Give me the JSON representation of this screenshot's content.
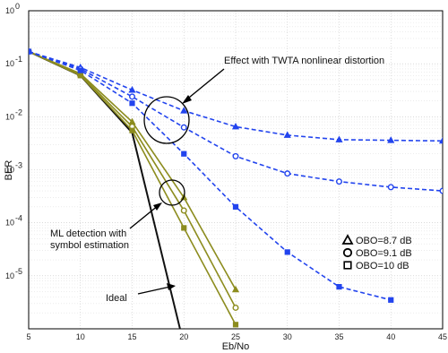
{
  "chart_data": {
    "type": "line",
    "xlabel": "Eb/No",
    "ylabel": "BER",
    "xlim": [
      5,
      45
    ],
    "ylim_log10": [
      -6,
      0
    ],
    "log_y": true,
    "grid": true,
    "x_ticks": [
      "5",
      "10",
      "15",
      "20",
      "25",
      "30",
      "35",
      "40",
      "45"
    ],
    "y_tick_exponents": [
      "0",
      "-1",
      "-2",
      "-3",
      "-4",
      "-5"
    ],
    "y_tick_base": "10",
    "colors": {
      "ideal": "#111111",
      "ml": "#8c8c1e",
      "twta": "#2244ee"
    },
    "series": [
      {
        "group": "ideal",
        "marker": "none",
        "dashed": false,
        "x": [
          5,
          10,
          15,
          20
        ],
        "y": [
          0.17,
          0.06,
          0.005,
          5e-07
        ]
      },
      {
        "group": "ml",
        "marker": "triangle",
        "dashed": false,
        "x": [
          5,
          10,
          15,
          20,
          25
        ],
        "y": [
          0.17,
          0.065,
          0.008,
          0.0003,
          5.5e-06
        ]
      },
      {
        "group": "ml",
        "marker": "circle",
        "dashed": false,
        "x": [
          5,
          10,
          15,
          20,
          25
        ],
        "y": [
          0.17,
          0.062,
          0.0065,
          0.00017,
          2.5e-06
        ]
      },
      {
        "group": "ml",
        "marker": "square",
        "dashed": false,
        "x": [
          5,
          10,
          15,
          20,
          25
        ],
        "y": [
          0.17,
          0.06,
          0.0055,
          8e-05,
          1.2e-06
        ]
      },
      {
        "group": "twta",
        "marker": "triangle",
        "dashed": true,
        "x": [
          5,
          10,
          15,
          20,
          25,
          30,
          35,
          40,
          45
        ],
        "y": [
          0.17,
          0.085,
          0.032,
          0.013,
          0.0065,
          0.0045,
          0.0037,
          0.0036,
          0.0035
        ]
      },
      {
        "group": "twta",
        "marker": "circle",
        "dashed": true,
        "x": [
          5,
          10,
          15,
          20,
          25,
          30,
          35,
          40,
          45
        ],
        "y": [
          0.17,
          0.08,
          0.024,
          0.0063,
          0.0018,
          0.00085,
          0.0006,
          0.00047,
          0.0004
        ]
      },
      {
        "group": "twta",
        "marker": "square",
        "dashed": true,
        "x": [
          5,
          10,
          15,
          20,
          25,
          30,
          35,
          40
        ],
        "y": [
          0.17,
          0.075,
          0.018,
          0.002,
          0.0002,
          2.8e-05,
          6.2e-06,
          3.5e-06
        ]
      }
    ],
    "legend": {
      "placement": "right",
      "entries": [
        {
          "marker": "triangle",
          "label": "OBO=8.7 dB"
        },
        {
          "marker": "circle",
          "label": "OBO=9.1 dB"
        },
        {
          "marker": "square",
          "label": "OBO=10 dB"
        }
      ]
    },
    "annotations": [
      {
        "id": "twta",
        "lines": [
          "Effect with TWTA nonlinear distortion"
        ]
      },
      {
        "id": "ml",
        "lines": [
          "ML detection with",
          "symbol estimation"
        ]
      },
      {
        "id": "ideal",
        "lines": [
          "Ideal"
        ]
      }
    ]
  }
}
